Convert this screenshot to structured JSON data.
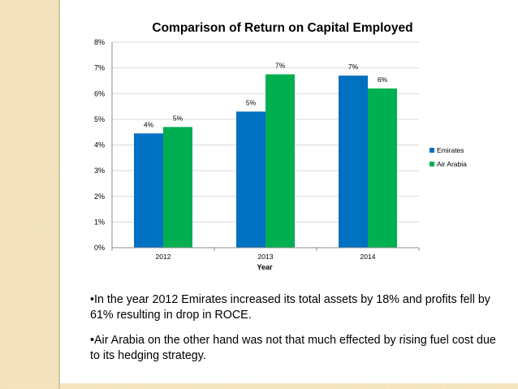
{
  "chart_data": {
    "type": "bar",
    "title": "Comparison of Return on Capital Employed",
    "xlabel": "Year",
    "ylabel": "",
    "categories": [
      "2012",
      "2013",
      "2014"
    ],
    "series": [
      {
        "name": "Emirates",
        "color": "#0070c0",
        "values": [
          4.45,
          5.3,
          6.7
        ],
        "labels": [
          "4%",
          "5%",
          "7%"
        ]
      },
      {
        "name": "Air Arabia",
        "color": "#00b050",
        "values": [
          4.7,
          6.75,
          6.2
        ],
        "labels": [
          "5%",
          "7%",
          "6%"
        ]
      }
    ],
    "ylim": [
      0,
      8
    ],
    "yticks": [
      "0%",
      "1%",
      "2%",
      "3%",
      "4%",
      "5%",
      "6%",
      "7%",
      "8%"
    ],
    "grid": true,
    "legend_position": "right"
  },
  "bullets": [
    "•In the year 2012 Emirates increased its total assets by 18% and profits fell by 61% resulting in drop in ROCE.",
    "•Air Arabia on the other hand was not that much effected by rising fuel cost due to its hedging strategy."
  ]
}
